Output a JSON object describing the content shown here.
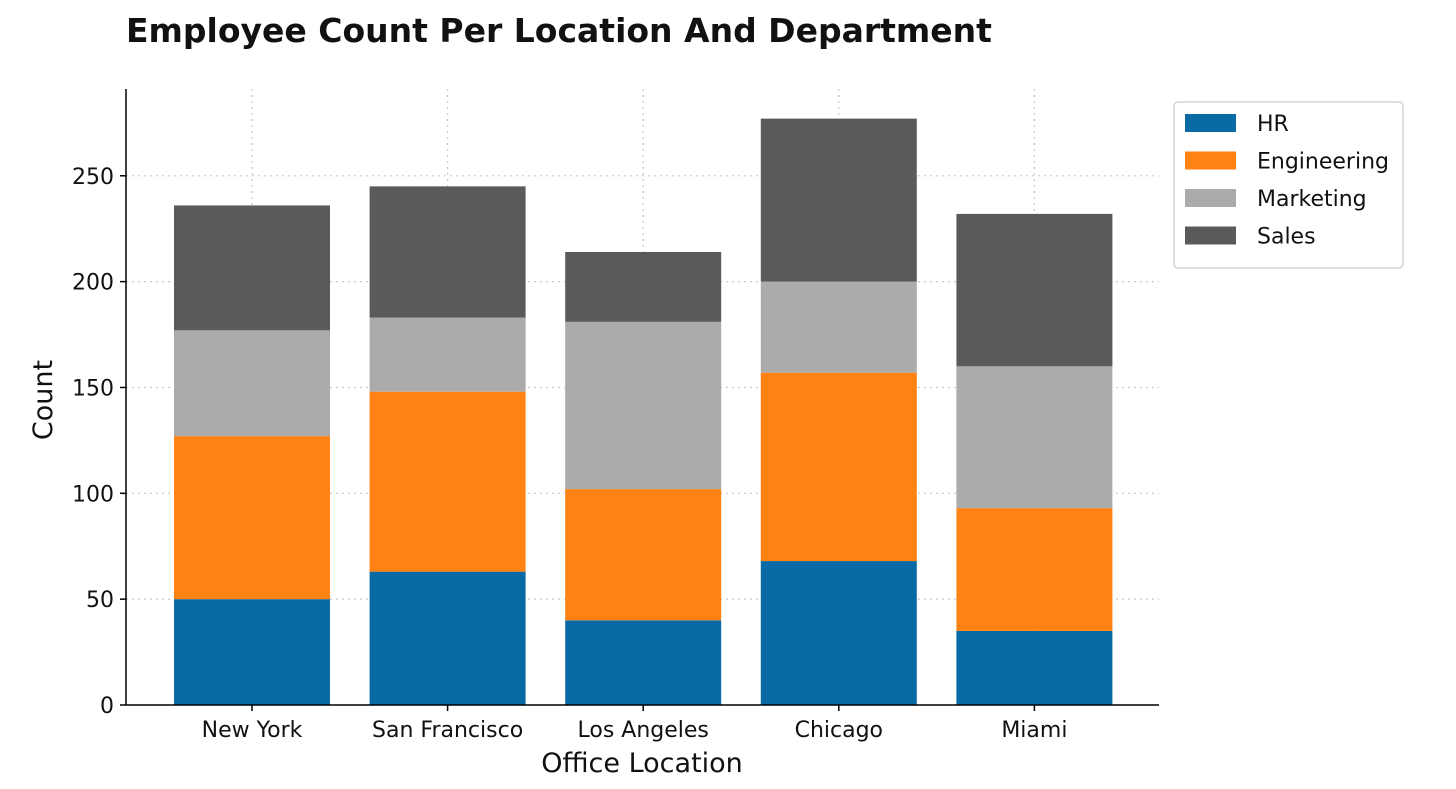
{
  "chart_data": {
    "type": "bar",
    "stacked": true,
    "title": "Employee Count Per Location And Department",
    "xlabel": "Office Location",
    "ylabel": "Count",
    "categories": [
      "New York",
      "San Francisco",
      "Los Angeles",
      "Chicago",
      "Miami"
    ],
    "series": [
      {
        "name": "HR",
        "color": "#0a6aa6",
        "values": [
          50,
          63,
          40,
          68,
          35
        ]
      },
      {
        "name": "Engineering",
        "color": "#ff8212",
        "values": [
          77,
          85,
          62,
          89,
          58
        ]
      },
      {
        "name": "Marketing",
        "color": "#ababab",
        "values": [
          50,
          35,
          79,
          43,
          67
        ]
      },
      {
        "name": "Sales",
        "color": "#5a5a5a",
        "values": [
          59,
          62,
          33,
          77,
          72
        ]
      }
    ],
    "ylim": [
      0,
      291
    ],
    "yticks": [
      0,
      50,
      100,
      150,
      200,
      250
    ],
    "grid": true,
    "legend_position": "top-right-outside"
  }
}
